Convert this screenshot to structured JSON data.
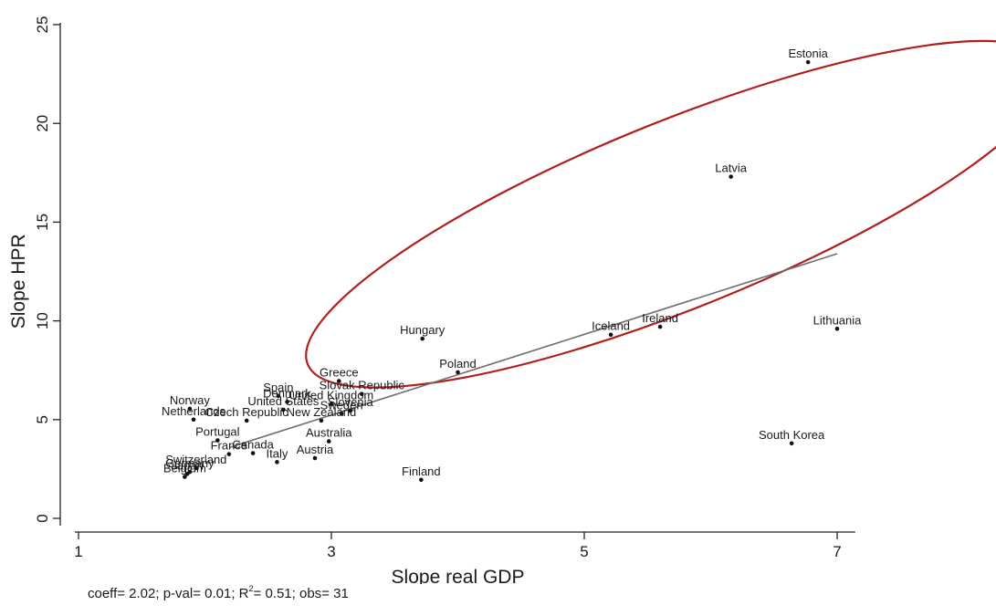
{
  "chart_data": {
    "type": "scatter",
    "xlabel": "Slope real GDP",
    "ylabel": "Slope HPR",
    "xlim": [
      1,
      7.1
    ],
    "ylim": [
      -0.5,
      25.5
    ],
    "xticks": [
      1,
      3,
      5,
      7
    ],
    "yticks": [
      0,
      5,
      10,
      15,
      20,
      25
    ],
    "grid": false,
    "legend": "none",
    "colors": {
      "points": "#111111",
      "fit_line": "#6e6e6e",
      "ellipse": "#b01e1e",
      "axis": "#222222"
    },
    "fit_line": {
      "x": [
        2.2,
        7.0
      ],
      "y": [
        3.6,
        13.4
      ]
    },
    "highlight_ellipse": {
      "center": [
        5.75,
        15.4
      ],
      "rx": 2.4,
      "ry": 7.2,
      "rotation_deg": -22
    },
    "points": [
      {
        "label": "Estonia",
        "x": 6.77,
        "y": 23.1
      },
      {
        "label": "Latvia",
        "x": 6.16,
        "y": 17.3
      },
      {
        "label": "Lithuania",
        "x": 7.0,
        "y": 9.6
      },
      {
        "label": "Ireland",
        "x": 5.6,
        "y": 9.7
      },
      {
        "label": "Iceland",
        "x": 5.21,
        "y": 9.3
      },
      {
        "label": "Hungary",
        "x": 3.72,
        "y": 9.1
      },
      {
        "label": "Poland",
        "x": 4.0,
        "y": 7.4
      },
      {
        "label": "South Korea",
        "x": 6.64,
        "y": 3.8
      },
      {
        "label": "Finland",
        "x": 3.71,
        "y": 1.95
      },
      {
        "label": "Greece",
        "x": 3.06,
        "y": 6.95
      },
      {
        "label": "Slovak Republic",
        "x": 3.24,
        "y": 6.3
      },
      {
        "label": "Spain",
        "x": 2.58,
        "y": 6.2
      },
      {
        "label": "Denmark",
        "x": 2.65,
        "y": 5.9
      },
      {
        "label": "United Kingdom",
        "x": 3.0,
        "y": 5.8
      },
      {
        "label": "United States",
        "x": 2.62,
        "y": 5.5
      },
      {
        "label": "Slovenia",
        "x": 3.15,
        "y": 5.45
      },
      {
        "label": "Sweden",
        "x": 3.08,
        "y": 5.3
      },
      {
        "label": "New Zealand",
        "x": 2.92,
        "y": 4.95
      },
      {
        "label": "Norway",
        "x": 1.88,
        "y": 5.55
      },
      {
        "label": "Netherlands",
        "x": 1.91,
        "y": 5.0
      },
      {
        "label": "Czech Republic",
        "x": 2.33,
        "y": 4.95
      },
      {
        "label": "Portugal",
        "x": 2.1,
        "y": 3.95
      },
      {
        "label": "Australia",
        "x": 2.98,
        "y": 3.9
      },
      {
        "label": "France",
        "x": 2.19,
        "y": 3.25
      },
      {
        "label": "Canada",
        "x": 2.38,
        "y": 3.3
      },
      {
        "label": "Italy",
        "x": 2.57,
        "y": 2.85
      },
      {
        "label": "Austria",
        "x": 2.87,
        "y": 3.05
      },
      {
        "label": "Switzerland",
        "x": 1.93,
        "y": 2.55
      },
      {
        "label": "Germany",
        "x": 1.88,
        "y": 2.35
      },
      {
        "label": "Japan",
        "x": 1.86,
        "y": 2.25
      },
      {
        "label": "Belgium",
        "x": 1.84,
        "y": 2.1
      }
    ]
  },
  "footnote": {
    "coeff": "coeff= 2.02; p-val= 0.01; R",
    "sup": "2",
    "rest": "= 0.51; obs=   31"
  }
}
